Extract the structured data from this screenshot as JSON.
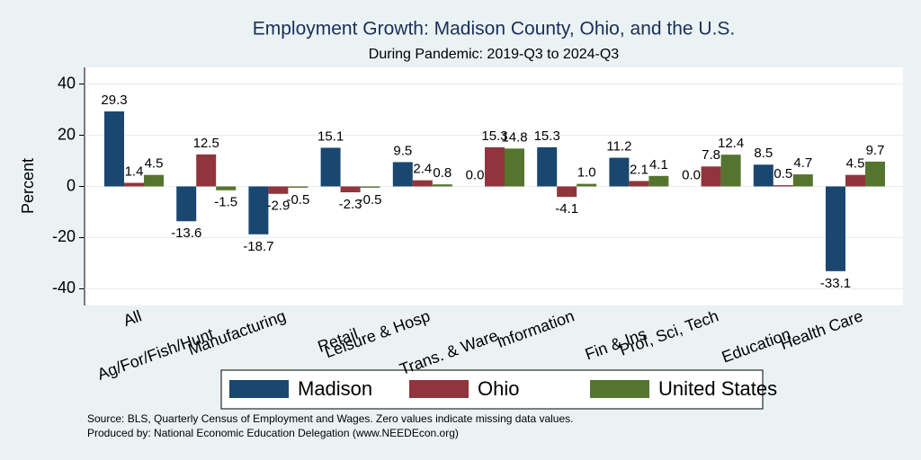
{
  "chart_data": {
    "type": "bar",
    "title": "Employment Growth: Madison County, Ohio, and the U.S.",
    "subtitle": "During Pandemic: 2019-Q3 to 2024-Q3",
    "y_label": "Percent",
    "categories": [
      "All",
      "Ag/For/Fish/Hunt",
      "Manufacturing",
      "Retail",
      "Leisure & Hosp",
      "Trans. & Ware.",
      "Information",
      "Fin & Ins",
      "Prof, Sci, Tech",
      "Education",
      "Health Care"
    ],
    "series": [
      {
        "name": "Madison",
        "color": "#1a476f",
        "values": [
          29.3,
          -13.6,
          -18.7,
          15.1,
          9.5,
          0,
          15.3,
          11.2,
          0,
          8.5,
          -33.1
        ],
        "value_labels": [
          "29.3",
          "-13.6",
          "-18.7",
          "15.1",
          "9.5",
          "0.0",
          "15.3",
          "11.2",
          "0.0",
          "8.5",
          "-33.1"
        ]
      },
      {
        "name": "Ohio",
        "color": "#90353b",
        "values": [
          1.4,
          12.5,
          -2.9,
          -2.3,
          2.4,
          15.3,
          -4.1,
          2.1,
          7.8,
          0.5,
          4.5
        ],
        "value_labels": [
          "1.4",
          "12.5",
          "-2.9",
          "-2.3",
          "2.4",
          "15.3",
          "-4.1",
          "2.1",
          "7.8",
          "0.5",
          "4.5"
        ]
      },
      {
        "name": "United States",
        "color": "#55752f",
        "values": [
          4.5,
          -1.5,
          -0.5,
          -0.5,
          0.8,
          14.8,
          1,
          4.1,
          12.4,
          4.7,
          9.7
        ],
        "value_labels": [
          "4.5",
          "-1.5",
          "-0.5",
          "-0.5",
          "0.8",
          "14.8",
          "1.0",
          "4.1",
          "12.4",
          "4.7",
          "9.7"
        ]
      }
    ],
    "ylim": [
      -46.5,
      46.5
    ],
    "yticks": [
      -40,
      -20,
      0,
      20,
      40
    ],
    "grid": true,
    "legend": "bottom",
    "notes": [
      "Source: BLS, Quarterly Census of Employment and Wages. Zero values indicate missing data values.",
      "Produced by: National Economic Education Delegation (www.NEEDEcon.org)"
    ]
  }
}
